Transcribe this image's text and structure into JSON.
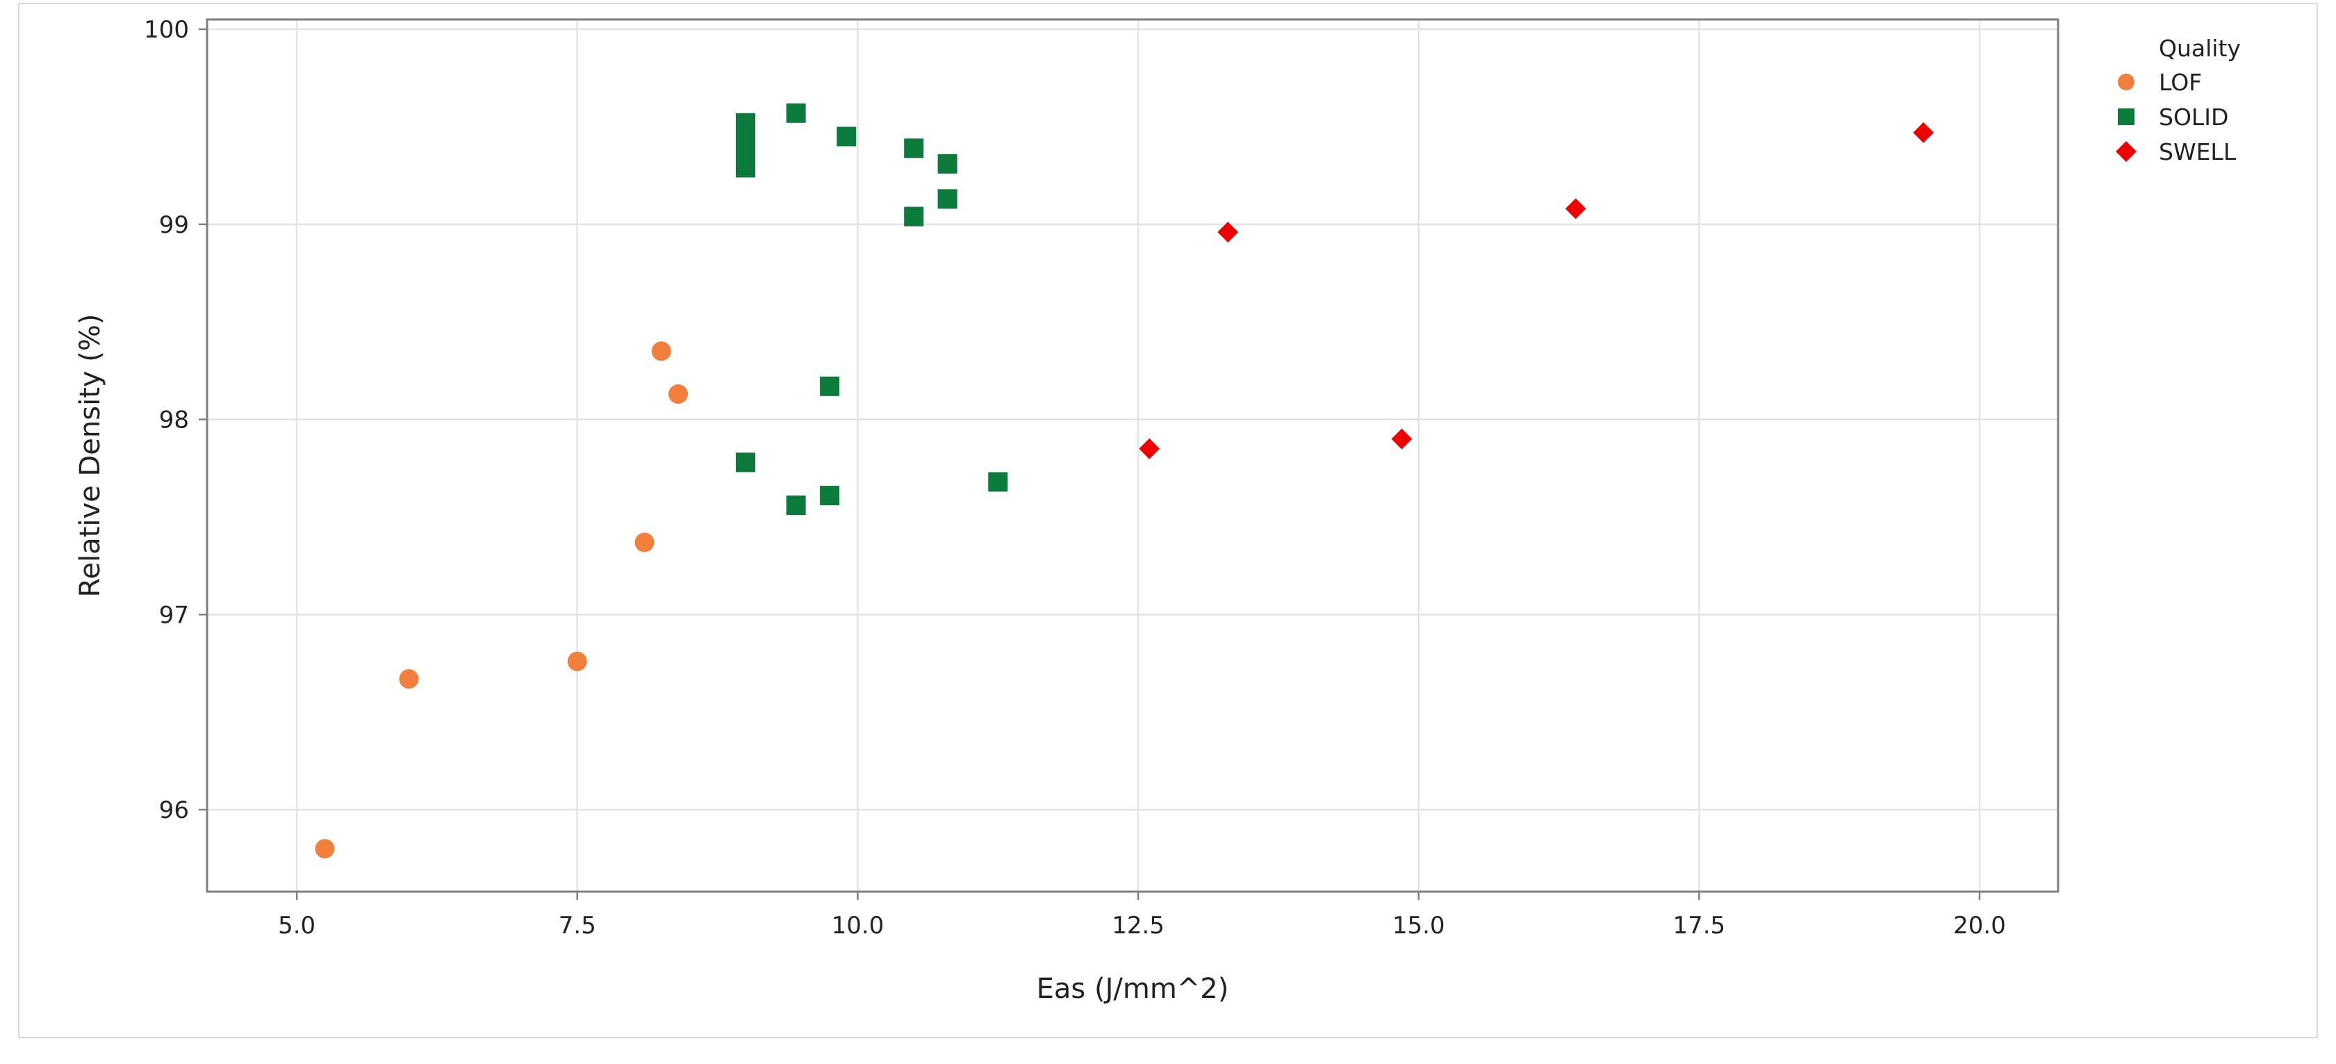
{
  "chart_data": {
    "type": "scatter",
    "title": "",
    "xlabel": "Eas (J/mm^2)",
    "ylabel": "Relative Density (%)",
    "xlim": [
      4.2,
      20.7
    ],
    "ylim": [
      95.58,
      100.05
    ],
    "x_ticks": [
      5.0,
      7.5,
      10.0,
      12.5,
      15.0,
      17.5,
      20.0
    ],
    "x_tick_labels": [
      "5.0",
      "7.5",
      "10.0",
      "12.5",
      "15.0",
      "17.5",
      "20.0"
    ],
    "y_ticks": [
      96,
      97,
      98,
      99,
      100
    ],
    "y_tick_labels": [
      "96",
      "97",
      "98",
      "99",
      "100"
    ],
    "grid": true,
    "legend": {
      "title": "Quality",
      "position": "top-right"
    },
    "series": [
      {
        "name": "LOF",
        "marker": "circle",
        "color": "#f0803c",
        "points": [
          [
            5.25,
            95.8
          ],
          [
            6.0,
            96.67
          ],
          [
            7.5,
            96.76
          ],
          [
            8.1,
            97.37
          ],
          [
            8.25,
            98.35
          ],
          [
            8.4,
            98.13
          ]
        ]
      },
      {
        "name": "SOLID",
        "marker": "square",
        "color": "#0b7a3a",
        "points": [
          [
            9.0,
            99.52
          ],
          [
            9.0,
            99.47
          ],
          [
            9.0,
            99.42
          ],
          [
            9.0,
            99.37
          ],
          [
            9.0,
            99.29
          ],
          [
            9.45,
            99.57
          ],
          [
            9.9,
            99.45
          ],
          [
            10.5,
            99.39
          ],
          [
            10.8,
            99.31
          ],
          [
            10.8,
            99.13
          ],
          [
            10.5,
            99.04
          ],
          [
            9.75,
            98.17
          ],
          [
            9.0,
            97.78
          ],
          [
            9.45,
            97.56
          ],
          [
            9.75,
            97.61
          ],
          [
            11.25,
            97.68
          ]
        ]
      },
      {
        "name": "SWELL",
        "marker": "diamond",
        "color": "#ee0000",
        "points": [
          [
            12.6,
            97.85
          ],
          [
            13.3,
            98.96
          ],
          [
            14.85,
            97.9
          ],
          [
            16.4,
            99.08
          ],
          [
            19.5,
            99.47
          ]
        ]
      }
    ]
  }
}
